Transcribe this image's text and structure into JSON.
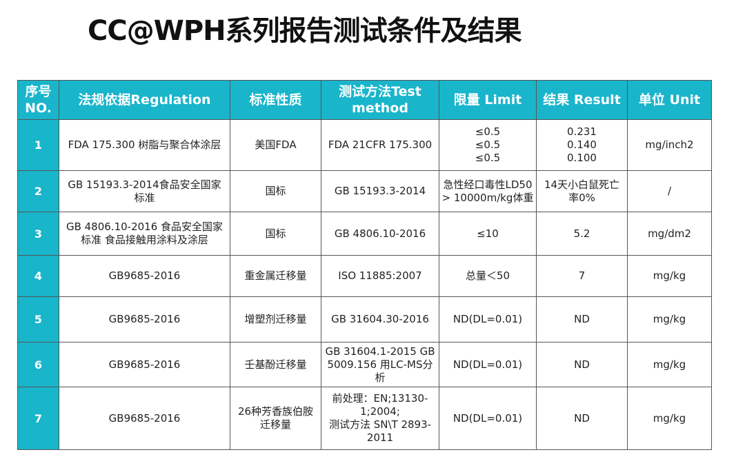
{
  "title": "CC@WPH系列报告测试条件及结果",
  "table": {
    "columns": [
      [
        "序号",
        "NO."
      ],
      [
        "法规依据Regulation"
      ],
      [
        "标准性质"
      ],
      [
        "测试方法Test",
        "method"
      ],
      [
        "限量 Limit"
      ],
      [
        "结果 Result"
      ],
      [
        "单位 Unit"
      ]
    ],
    "rows": [
      [
        [
          "1"
        ],
        [
          "FDA 175.300 树脂与聚合体涂层"
        ],
        [
          "美国FDA"
        ],
        [
          "FDA 21CFR 175.300"
        ],
        [
          "≤0.5",
          "≤0.5",
          "≤0.5"
        ],
        [
          "0.231",
          "0.140",
          "0.100"
        ],
        [
          "mg/inch2"
        ]
      ],
      [
        [
          "2"
        ],
        [
          "GB 15193.3-2014食品安全国家",
          "标准"
        ],
        [
          "国标"
        ],
        [
          "GB 15193.3-2014"
        ],
        [
          "急性经口毒性LD50",
          "> 10000m/kg体重"
        ],
        [
          "14天小白鼠死亡",
          "率0%"
        ],
        [
          "/"
        ]
      ],
      [
        [
          "3"
        ],
        [
          "GB 4806.10-2016 食品安全国家",
          "标准 食品接触用涂料及涂层"
        ],
        [
          "国标"
        ],
        [
          "GB 4806.10-2016"
        ],
        [
          "≤10"
        ],
        [
          "5.2"
        ],
        [
          "mg/dm2"
        ]
      ],
      [
        [
          "4"
        ],
        [
          "GB9685-2016"
        ],
        [
          "重金属迁移量"
        ],
        [
          "ISO 11885:2007"
        ],
        [
          "总量＜50"
        ],
        [
          "7"
        ],
        [
          "mg/kg"
        ]
      ],
      [
        [
          "5"
        ],
        [
          "GB9685-2016"
        ],
        [
          "增塑剂迁移量"
        ],
        [
          "GB 31604.30-2016"
        ],
        [
          "ND(DL=0.01)"
        ],
        [
          "ND"
        ],
        [
          "mg/kg"
        ]
      ],
      [
        [
          "6"
        ],
        [
          "GB9685-2016"
        ],
        [
          "壬基酚迁移量"
        ],
        [
          "GB 31604.1-2015 GB",
          "5009.156 用LC-MS分",
          "析"
        ],
        [
          "ND(DL=0.01)"
        ],
        [
          "ND"
        ],
        [
          "mg/kg"
        ]
      ],
      [
        [
          "7"
        ],
        [
          "GB9685-2016"
        ],
        [
          "26种芳香族伯胺",
          "迁移量"
        ],
        [
          "前处理：EN;13130-",
          "1;2004;",
          "测试方法 SN\\T 2893-",
          "2011"
        ],
        [
          "ND(DL=0.01)"
        ],
        [
          "ND"
        ],
        [
          "mg/kg"
        ]
      ]
    ]
  }
}
